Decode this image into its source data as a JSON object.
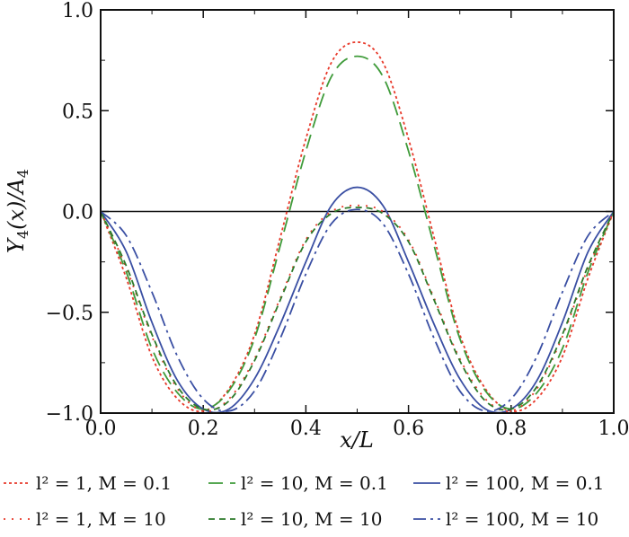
{
  "chart_data": {
    "type": "line",
    "xlabel": "x/L",
    "ylabel": "Y4(x)/A4",
    "xlim": [
      0.0,
      1.0
    ],
    "ylim": [
      -1.0,
      1.0
    ],
    "x_ticks": [
      "0.0",
      "0.2",
      "0.4",
      "0.6",
      "0.8",
      "1.0"
    ],
    "y_ticks": [
      "1.0",
      "0.5",
      "0.0",
      "−0.5",
      "−1.0"
    ],
    "grid": false,
    "reference_line_y": 0,
    "legend_placement": "bottom",
    "series": [
      {
        "name": "l² = 1, M = 0.1",
        "color": "#e8392a",
        "dash": "dotted",
        "points": [
          [
            0,
            0
          ],
          [
            0.05,
            -0.33
          ],
          [
            0.1,
            -0.72
          ],
          [
            0.15,
            -0.93
          ],
          [
            0.2,
            -0.99
          ],
          [
            0.25,
            -0.88
          ],
          [
            0.3,
            -0.61
          ],
          [
            0.35,
            -0.13
          ],
          [
            0.4,
            0.36
          ],
          [
            0.45,
            0.74
          ],
          [
            0.5,
            0.84
          ],
          [
            0.55,
            0.74
          ],
          [
            0.6,
            0.36
          ],
          [
            0.65,
            -0.13
          ],
          [
            0.7,
            -0.61
          ],
          [
            0.75,
            -0.88
          ],
          [
            0.8,
            -0.99
          ],
          [
            0.85,
            -0.93
          ],
          [
            0.9,
            -0.72
          ],
          [
            0.95,
            -0.33
          ],
          [
            1.0,
            0
          ]
        ]
      },
      {
        "name": "l² = 10, M = 0.1",
        "color": "#3f9b3a",
        "dash": "dashed",
        "points": [
          [
            0,
            0
          ],
          [
            0.05,
            -0.3
          ],
          [
            0.1,
            -0.68
          ],
          [
            0.15,
            -0.9
          ],
          [
            0.2,
            -0.98
          ],
          [
            0.25,
            -0.89
          ],
          [
            0.3,
            -0.63
          ],
          [
            0.35,
            -0.17
          ],
          [
            0.4,
            0.3
          ],
          [
            0.45,
            0.67
          ],
          [
            0.5,
            0.77
          ],
          [
            0.55,
            0.67
          ],
          [
            0.6,
            0.3
          ],
          [
            0.65,
            -0.17
          ],
          [
            0.7,
            -0.63
          ],
          [
            0.75,
            -0.89
          ],
          [
            0.8,
            -0.98
          ],
          [
            0.85,
            -0.9
          ],
          [
            0.9,
            -0.68
          ],
          [
            0.95,
            -0.3
          ],
          [
            1.0,
            0
          ]
        ]
      },
      {
        "name": "l² = 100, M = 0.1",
        "color": "#3a4fa3",
        "dash": "solid",
        "points": [
          [
            0,
            0
          ],
          [
            0.05,
            -0.2
          ],
          [
            0.1,
            -0.55
          ],
          [
            0.15,
            -0.84
          ],
          [
            0.2,
            -0.98
          ],
          [
            0.25,
            -0.98
          ],
          [
            0.3,
            -0.83
          ],
          [
            0.35,
            -0.56
          ],
          [
            0.4,
            -0.25
          ],
          [
            0.45,
            0.03
          ],
          [
            0.5,
            0.12
          ],
          [
            0.55,
            0.03
          ],
          [
            0.6,
            -0.25
          ],
          [
            0.65,
            -0.56
          ],
          [
            0.7,
            -0.83
          ],
          [
            0.75,
            -0.98
          ],
          [
            0.8,
            -0.98
          ],
          [
            0.85,
            -0.84
          ],
          [
            0.9,
            -0.55
          ],
          [
            0.95,
            -0.2
          ],
          [
            1.0,
            0
          ]
        ]
      },
      {
        "name": "l² = 1, M = 10",
        "color": "#e8392a",
        "dash": "sparse-dotted",
        "points": [
          [
            0,
            0
          ],
          [
            0.05,
            -0.28
          ],
          [
            0.1,
            -0.62
          ],
          [
            0.15,
            -0.88
          ],
          [
            0.2,
            -0.99
          ],
          [
            0.25,
            -0.93
          ],
          [
            0.3,
            -0.73
          ],
          [
            0.35,
            -0.43
          ],
          [
            0.4,
            -0.14
          ],
          [
            0.45,
            0.0
          ],
          [
            0.5,
            0.03
          ],
          [
            0.55,
            0.0
          ],
          [
            0.6,
            -0.14
          ],
          [
            0.65,
            -0.43
          ],
          [
            0.7,
            -0.73
          ],
          [
            0.75,
            -0.93
          ],
          [
            0.8,
            -0.99
          ],
          [
            0.85,
            -0.88
          ],
          [
            0.9,
            -0.62
          ],
          [
            0.95,
            -0.28
          ],
          [
            1.0,
            0
          ]
        ]
      },
      {
        "name": "l² = 10, M = 10",
        "color": "#2d7a2a",
        "dash": "short-dashed",
        "points": [
          [
            0,
            0
          ],
          [
            0.05,
            -0.27
          ],
          [
            0.1,
            -0.61
          ],
          [
            0.15,
            -0.87
          ],
          [
            0.2,
            -0.98
          ],
          [
            0.25,
            -0.94
          ],
          [
            0.3,
            -0.74
          ],
          [
            0.35,
            -0.44
          ],
          [
            0.4,
            -0.15
          ],
          [
            0.45,
            -0.01
          ],
          [
            0.5,
            0.02
          ],
          [
            0.55,
            -0.01
          ],
          [
            0.6,
            -0.15
          ],
          [
            0.65,
            -0.44
          ],
          [
            0.7,
            -0.74
          ],
          [
            0.75,
            -0.94
          ],
          [
            0.8,
            -0.98
          ],
          [
            0.85,
            -0.87
          ],
          [
            0.9,
            -0.61
          ],
          [
            0.95,
            -0.27
          ],
          [
            1.0,
            0
          ]
        ]
      },
      {
        "name": "l² = 100, M = 10",
        "color": "#3a4fa3",
        "dash": "dash-dot",
        "points": [
          [
            0,
            0
          ],
          [
            0.05,
            -0.12
          ],
          [
            0.1,
            -0.4
          ],
          [
            0.15,
            -0.72
          ],
          [
            0.2,
            -0.93
          ],
          [
            0.25,
            -0.99
          ],
          [
            0.3,
            -0.89
          ],
          [
            0.35,
            -0.63
          ],
          [
            0.4,
            -0.31
          ],
          [
            0.45,
            -0.06
          ],
          [
            0.5,
            0.01
          ],
          [
            0.55,
            -0.06
          ],
          [
            0.6,
            -0.31
          ],
          [
            0.65,
            -0.63
          ],
          [
            0.7,
            -0.89
          ],
          [
            0.75,
            -0.99
          ],
          [
            0.8,
            -0.93
          ],
          [
            0.85,
            -0.72
          ],
          [
            0.9,
            -0.4
          ],
          [
            0.95,
            -0.12
          ],
          [
            1.0,
            0
          ]
        ]
      }
    ]
  }
}
